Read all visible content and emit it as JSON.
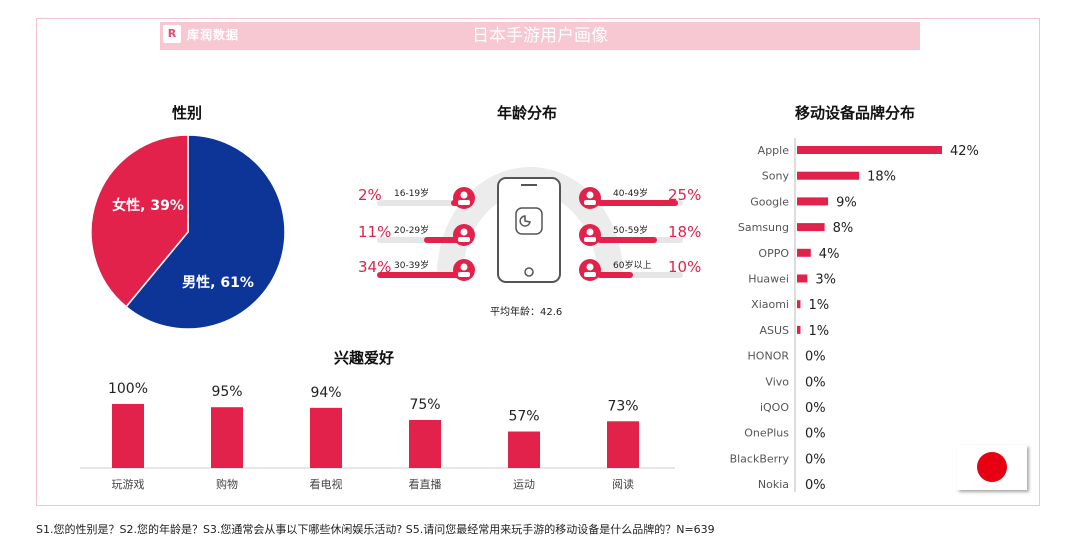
{
  "header": {
    "title": "日本手游用户画像",
    "logo_text": "库润数据"
  },
  "footnote": "S1.您的性别是？S2.您的年龄是？S3.您通常会从事以下哪些休闲娱乐活动? S5.请问您最经常用来玩手游的移动设备是什么品牌的？N=639",
  "colors": {
    "accent": "#e2224a",
    "blue": "#0c3597",
    "pink_bar": "#f7c7d2",
    "track": "#e6e6e6"
  },
  "chart_data": [
    {
      "type": "pie",
      "title": "性别",
      "slices": [
        {
          "label": "男性, 61%",
          "value": 61,
          "color": "#0c3597"
        },
        {
          "label": "女性, 39%",
          "value": 39,
          "color": "#e2224a"
        }
      ]
    },
    {
      "type": "bar",
      "title": "年龄分布",
      "note": "平均年龄：42.6",
      "left": [
        {
          "range": "16-19岁",
          "pct": "2%",
          "value": 2
        },
        {
          "range": "20-29岁",
          "pct": "11%",
          "value": 11
        },
        {
          "range": "30-39岁",
          "pct": "34%",
          "value": 34
        }
      ],
      "right": [
        {
          "range": "40-49岁",
          "pct": "25%",
          "value": 25
        },
        {
          "range": "50-59岁",
          "pct": "18%",
          "value": 18
        },
        {
          "range": "60岁以上",
          "pct": "10%",
          "value": 10
        }
      ]
    },
    {
      "type": "bar",
      "title": "兴趣爱好",
      "categories": [
        "玩游戏",
        "购物",
        "看电视",
        "看直播",
        "运动",
        "阅读"
      ],
      "values": [
        100,
        95,
        94,
        75,
        57,
        73
      ],
      "labels": [
        "100%",
        "95%",
        "94%",
        "75%",
        "57%",
        "73%"
      ]
    },
    {
      "type": "bar",
      "orientation": "horizontal",
      "title": "移动设备品牌分布",
      "categories": [
        "Apple",
        "Sony",
        "Google",
        "Samsung",
        "OPPO",
        "Huawei",
        "Xiaomi",
        "ASUS",
        "HONOR",
        "Vivo",
        "iQOO",
        "OnePlus",
        "BlackBerry",
        "Nokia"
      ],
      "values": [
        42,
        18,
        9,
        8,
        4,
        3,
        1,
        1,
        0,
        0,
        0,
        0,
        0,
        0
      ],
      "labels": [
        "42%",
        "18%",
        "9%",
        "8%",
        "4%",
        "3%",
        "1%",
        "1%",
        "0%",
        "0%",
        "0%",
        "0%",
        "0%",
        "0%"
      ]
    }
  ]
}
